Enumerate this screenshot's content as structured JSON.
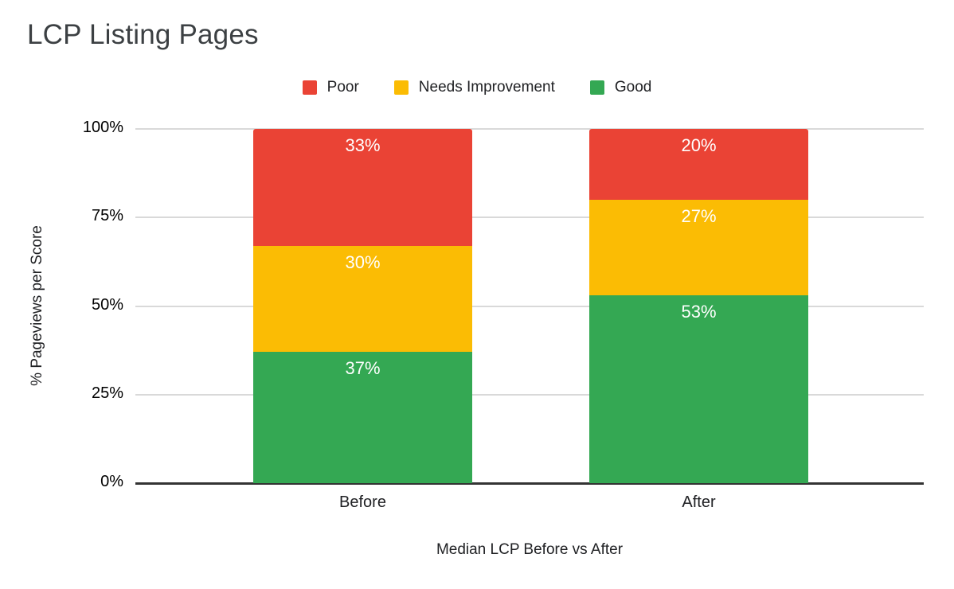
{
  "chart_data": {
    "type": "bar",
    "stacked": true,
    "title": "LCP Listing Pages",
    "xlabel": "Median LCP Before vs After",
    "ylabel": "% Pageviews per Score",
    "categories": [
      "Before",
      "After"
    ],
    "series": [
      {
        "name": "Good",
        "color": "#34A853",
        "values": [
          37,
          53
        ]
      },
      {
        "name": "Needs Improvement",
        "color": "#FBBC04",
        "values": [
          30,
          27
        ]
      },
      {
        "name": "Poor",
        "color": "#EA4335",
        "values": [
          33,
          20
        ]
      }
    ],
    "data_labels": [
      [
        "37%",
        "53%"
      ],
      [
        "30%",
        "27%"
      ],
      [
        "33%",
        "20%"
      ]
    ],
    "legend_order": [
      "Poor",
      "Needs Improvement",
      "Good"
    ],
    "legend_position": "top",
    "ylim": [
      0,
      100
    ],
    "yticks": [
      "0%",
      "25%",
      "50%",
      "75%",
      "100%"
    ],
    "grid": true,
    "colors": {
      "poor": "#EA4335",
      "needs_improvement": "#FBBC04",
      "good": "#34A853",
      "gridline": "#d9d9d9",
      "axis_line": "#333333",
      "title_text": "#3c4043",
      "data_label_text": "#ffffff"
    }
  }
}
